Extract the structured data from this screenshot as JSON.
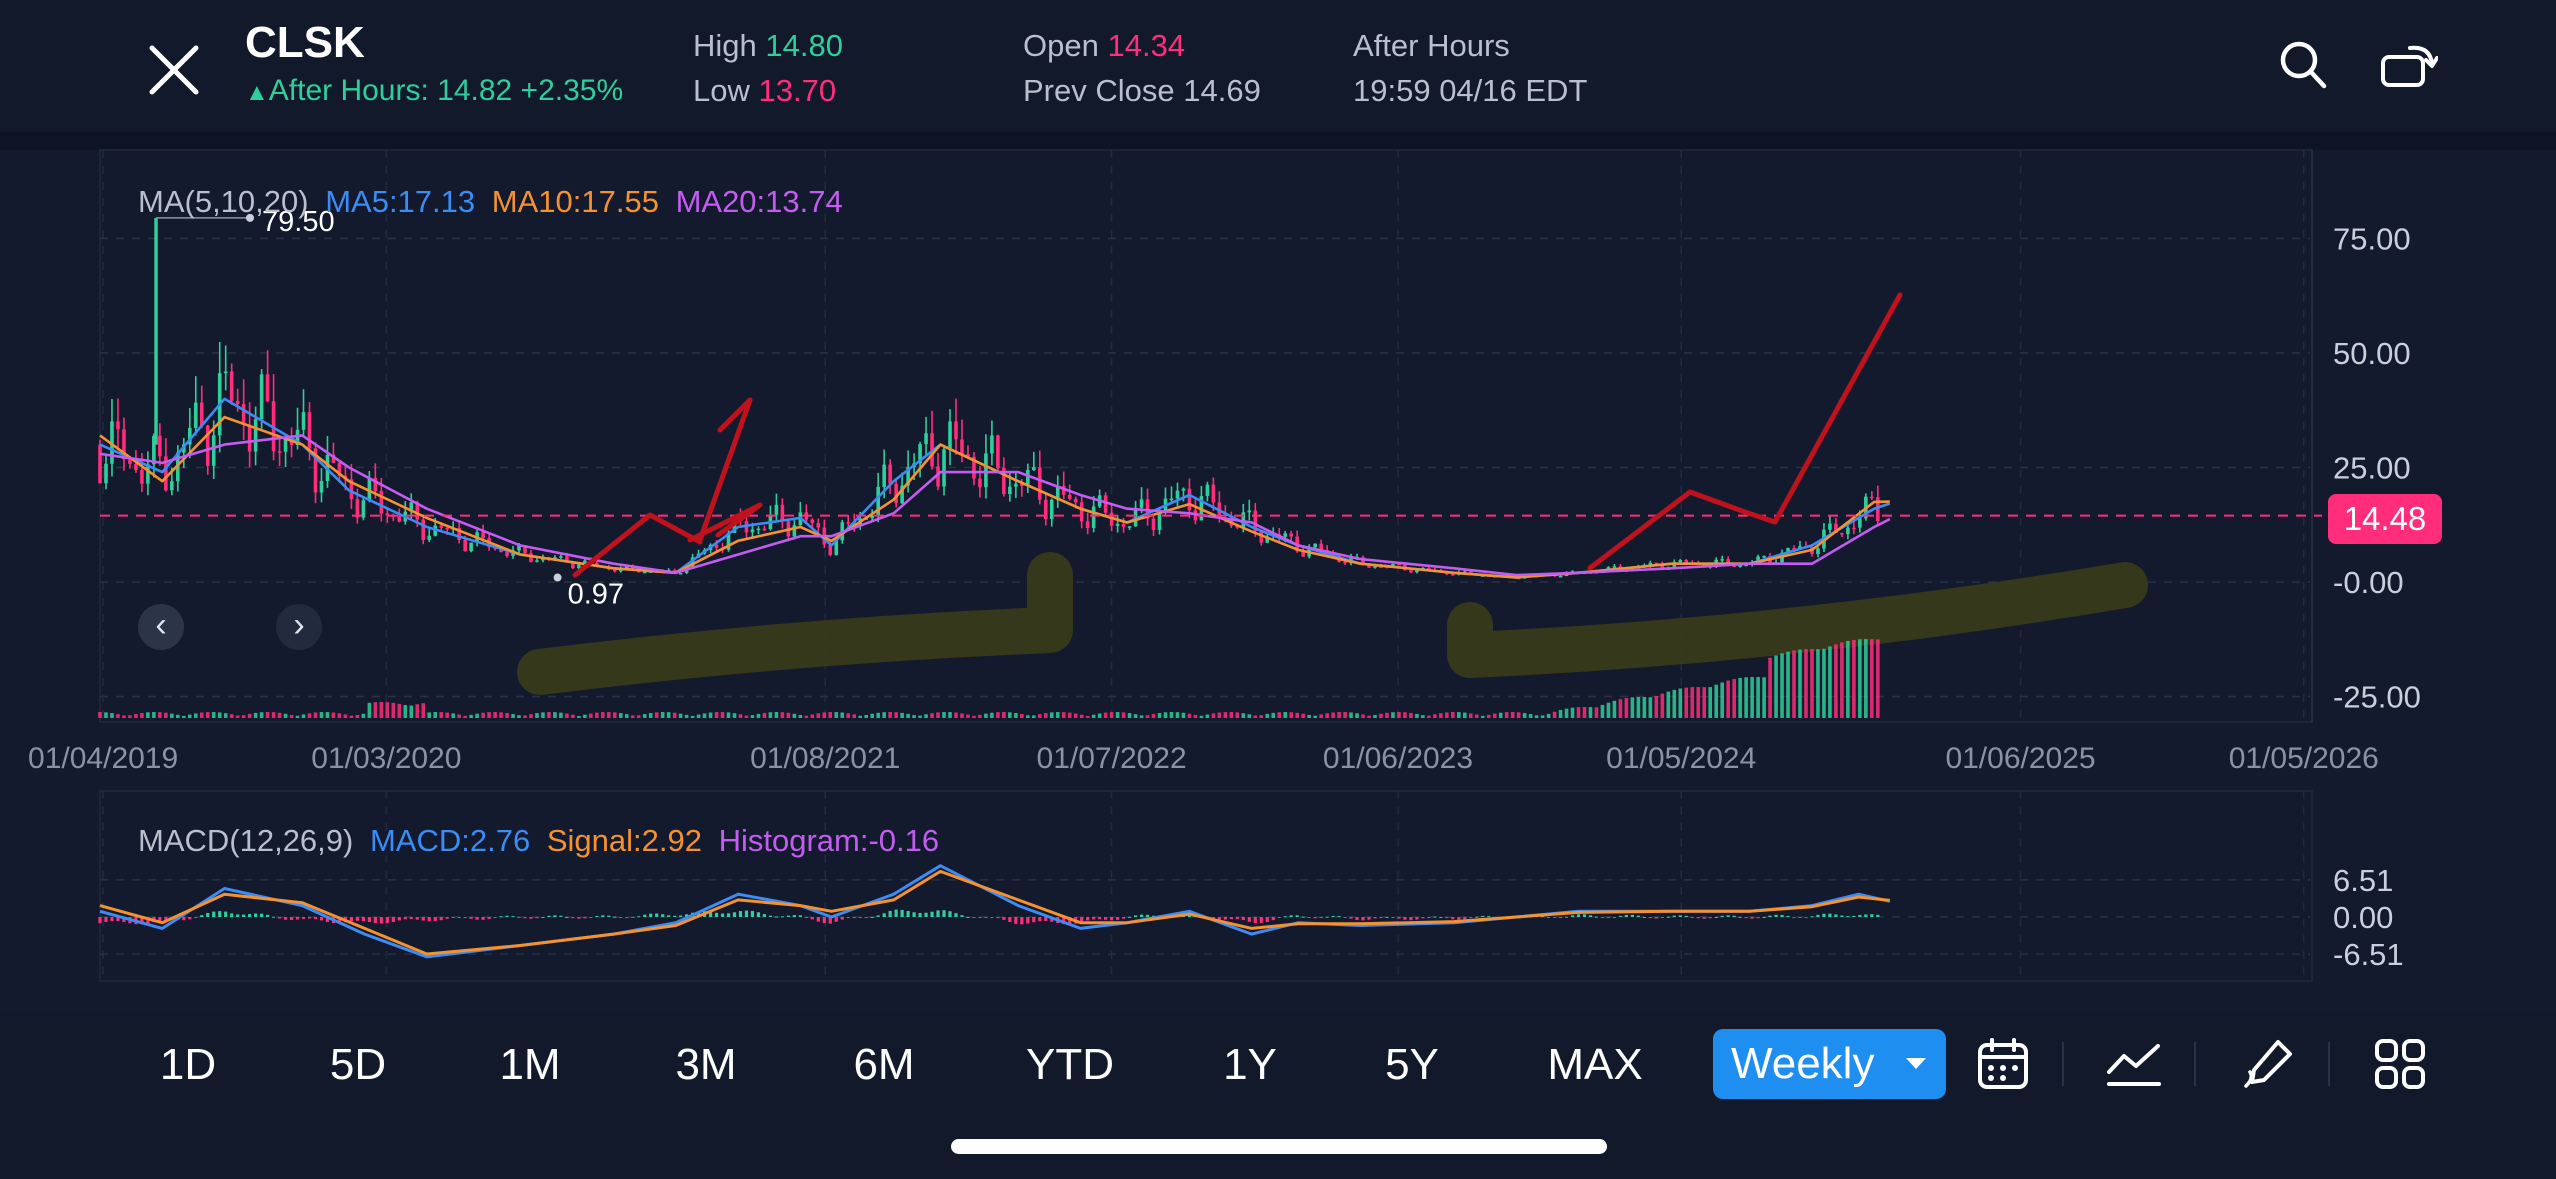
{
  "header": {
    "ticker": "CLSK",
    "after_hours_line": "After Hours: 14.82 +2.35%",
    "high_label": "High",
    "high_value": "14.80",
    "low_label": "Low",
    "low_value": "13.70",
    "open_label": "Open",
    "open_value": "14.34",
    "prev_close_label": "Prev Close",
    "prev_close_value": "14.69",
    "session_label": "After Hours",
    "session_time": "19:59 04/16 EDT",
    "icons": [
      "close-icon",
      "search-icon",
      "rotate-screen-icon"
    ]
  },
  "main_chart": {
    "ma_label": "MA(5,10,20)",
    "ma5": "MA5:17.13",
    "ma10": "MA10:17.55",
    "ma20": "MA20:13.74",
    "max_label": "79.50",
    "min_label": "0.97",
    "current_price": "14.48",
    "y_ticks": [
      "75.00",
      "50.00",
      "25.00",
      "-0.00",
      "-25.00"
    ],
    "x_ticks": [
      "01/04/2019",
      "01/03/2020",
      "01/08/2021",
      "01/07/2022",
      "01/06/2023",
      "01/05/2024",
      "01/06/2025",
      "01/05/2026"
    ],
    "nav_prev": "‹",
    "nav_next": "›"
  },
  "macd": {
    "label": "MACD(12,26,9)",
    "macd": "MACD:2.76",
    "signal": "Signal:2.92",
    "histogram": "Histogram:-0.16",
    "y_ticks": [
      "6.51",
      "0.00",
      "-6.51"
    ]
  },
  "toolbar": {
    "ranges": [
      "1D",
      "5D",
      "1M",
      "3M",
      "6M",
      "YTD",
      "1Y",
      "5Y",
      "MAX"
    ],
    "interval": "Weekly",
    "icons": [
      "calendar-icon",
      "indicator-icon",
      "draw-icon",
      "grid-icon"
    ]
  },
  "colors": {
    "background": "#131a2d",
    "up": "#2ecf9a",
    "down": "#ff2d7a",
    "ma5": "#3b8cf5",
    "ma10": "#f5922f",
    "ma20": "#c45cf2",
    "accent": "#1f8ef1",
    "annotation": "#c0121c",
    "highlight": "#3a3c1a"
  },
  "chart_data": {
    "type": "line",
    "title": "",
    "y_range": [
      -25,
      75
    ],
    "x_range": [
      "2019-04-01",
      "2026-05-01"
    ],
    "current_price": 14.48,
    "max_point": {
      "date": "2019-06",
      "value": 79.5
    },
    "min_point": {
      "date": "2020-03",
      "value": 0.97
    },
    "series": [
      {
        "name": "MA5",
        "values": [
          [
            2019.25,
            30
          ],
          [
            2019.45,
            24
          ],
          [
            2019.65,
            40
          ],
          [
            2019.9,
            30
          ],
          [
            2020.05,
            20
          ],
          [
            2020.3,
            12
          ],
          [
            2020.6,
            6
          ],
          [
            2020.9,
            3
          ],
          [
            2021.1,
            2
          ],
          [
            2021.3,
            12
          ],
          [
            2021.5,
            14
          ],
          [
            2021.6,
            8
          ],
          [
            2021.8,
            22
          ],
          [
            2021.95,
            30
          ],
          [
            2022.2,
            22
          ],
          [
            2022.4,
            16
          ],
          [
            2022.55,
            13
          ],
          [
            2022.75,
            19
          ],
          [
            2022.95,
            12
          ],
          [
            2023.1,
            8
          ],
          [
            2023.3,
            4
          ],
          [
            2023.6,
            2
          ],
          [
            2023.8,
            1
          ],
          [
            2024.0,
            2
          ],
          [
            2024.3,
            4
          ],
          [
            2024.55,
            4
          ],
          [
            2024.75,
            8
          ],
          [
            2024.95,
            16
          ],
          [
            2025.0,
            17.13
          ]
        ]
      },
      {
        "name": "MA10",
        "values": [
          [
            2019.25,
            32
          ],
          [
            2019.45,
            22
          ],
          [
            2019.65,
            36
          ],
          [
            2019.9,
            30
          ],
          [
            2020.05,
            22
          ],
          [
            2020.3,
            14
          ],
          [
            2020.6,
            6
          ],
          [
            2020.9,
            3
          ],
          [
            2021.1,
            2
          ],
          [
            2021.3,
            9
          ],
          [
            2021.5,
            12
          ],
          [
            2021.6,
            9
          ],
          [
            2021.8,
            18
          ],
          [
            2021.95,
            30
          ],
          [
            2022.2,
            22
          ],
          [
            2022.4,
            16
          ],
          [
            2022.55,
            13
          ],
          [
            2022.75,
            17
          ],
          [
            2022.95,
            11
          ],
          [
            2023.1,
            7
          ],
          [
            2023.3,
            4
          ],
          [
            2023.6,
            2
          ],
          [
            2023.8,
            1
          ],
          [
            2024.0,
            2
          ],
          [
            2024.3,
            4
          ],
          [
            2024.55,
            4
          ],
          [
            2024.75,
            7
          ],
          [
            2024.95,
            17.5
          ],
          [
            2025.0,
            17.55
          ]
        ]
      },
      {
        "name": "MA20",
        "values": [
          [
            2019.25,
            28
          ],
          [
            2019.45,
            26
          ],
          [
            2019.65,
            30
          ],
          [
            2019.9,
            32
          ],
          [
            2020.05,
            25
          ],
          [
            2020.3,
            16
          ],
          [
            2020.6,
            8
          ],
          [
            2020.9,
            4
          ],
          [
            2021.1,
            2
          ],
          [
            2021.3,
            6
          ],
          [
            2021.5,
            10
          ],
          [
            2021.6,
            10
          ],
          [
            2021.8,
            15
          ],
          [
            2021.95,
            24
          ],
          [
            2022.2,
            24
          ],
          [
            2022.4,
            19
          ],
          [
            2022.55,
            16
          ],
          [
            2022.75,
            15
          ],
          [
            2022.95,
            13
          ],
          [
            2023.1,
            8
          ],
          [
            2023.3,
            5
          ],
          [
            2023.6,
            3
          ],
          [
            2023.8,
            1.5
          ],
          [
            2024.0,
            2
          ],
          [
            2024.3,
            3
          ],
          [
            2024.55,
            4
          ],
          [
            2024.75,
            4
          ],
          [
            2024.95,
            12
          ],
          [
            2025.0,
            13.74
          ]
        ]
      }
    ],
    "macd_series": [
      {
        "name": "MACD",
        "values": [
          [
            2019.25,
            1
          ],
          [
            2019.45,
            -2
          ],
          [
            2019.65,
            5
          ],
          [
            2019.9,
            2
          ],
          [
            2020.1,
            -3
          ],
          [
            2020.3,
            -7
          ],
          [
            2020.6,
            -5
          ],
          [
            2020.9,
            -3
          ],
          [
            2021.1,
            -1
          ],
          [
            2021.3,
            4
          ],
          [
            2021.5,
            2
          ],
          [
            2021.6,
            0
          ],
          [
            2021.8,
            4
          ],
          [
            2021.95,
            9
          ],
          [
            2022.2,
            2
          ],
          [
            2022.4,
            -2
          ],
          [
            2022.55,
            -1
          ],
          [
            2022.75,
            1
          ],
          [
            2022.95,
            -3
          ],
          [
            2023.1,
            -1
          ],
          [
            2023.3,
            -1.5
          ],
          [
            2023.6,
            -1
          ],
          [
            2023.8,
            0
          ],
          [
            2024.0,
            1
          ],
          [
            2024.3,
            1
          ],
          [
            2024.55,
            1
          ],
          [
            2024.75,
            2
          ],
          [
            2024.9,
            4
          ],
          [
            2025.0,
            2.76
          ]
        ]
      },
      {
        "name": "Signal",
        "values": [
          [
            2019.25,
            2
          ],
          [
            2019.45,
            -1
          ],
          [
            2019.65,
            4
          ],
          [
            2019.9,
            2.5
          ],
          [
            2020.1,
            -2
          ],
          [
            2020.3,
            -6.5
          ],
          [
            2020.6,
            -5
          ],
          [
            2020.9,
            -3
          ],
          [
            2021.1,
            -1.5
          ],
          [
            2021.3,
            3
          ],
          [
            2021.5,
            2
          ],
          [
            2021.6,
            1
          ],
          [
            2021.8,
            3
          ],
          [
            2021.95,
            8
          ],
          [
            2022.2,
            3
          ],
          [
            2022.4,
            -1
          ],
          [
            2022.55,
            -1
          ],
          [
            2022.75,
            0.5
          ],
          [
            2022.95,
            -2
          ],
          [
            2023.1,
            -1.2
          ],
          [
            2023.3,
            -1.2
          ],
          [
            2023.6,
            -0.8
          ],
          [
            2023.8,
            0
          ],
          [
            2024.0,
            0.8
          ],
          [
            2024.3,
            1
          ],
          [
            2024.55,
            1
          ],
          [
            2024.75,
            1.8
          ],
          [
            2024.9,
            3.5
          ],
          [
            2025.0,
            2.92
          ]
        ]
      }
    ]
  }
}
